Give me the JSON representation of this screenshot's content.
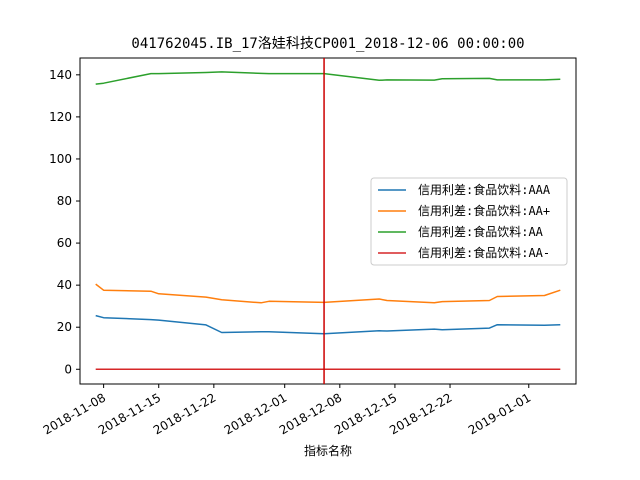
{
  "chart_data": {
    "type": "line",
    "title": "041762045.IB_17洛娃科技CP001_2018-12-06 00:00:00",
    "xlabel": "指标名称",
    "ylabel": "",
    "x_dates": [
      "2018-11-07",
      "2018-11-08",
      "2018-11-14",
      "2018-11-15",
      "2018-11-21",
      "2018-11-23",
      "2018-11-28",
      "2018-11-29",
      "2018-12-06",
      "2018-12-13",
      "2018-12-14",
      "2018-12-20",
      "2018-12-21",
      "2018-12-27",
      "2018-12-28",
      "2019-01-03",
      "2019-01-05"
    ],
    "series": [
      {
        "name": "信用利差:食品饮料:AAA",
        "color": "#1f77b4",
        "values": [
          25.5,
          24.5,
          23.6,
          23.4,
          21.1,
          17.5,
          17.8,
          17.8,
          16.9,
          18.3,
          18.2,
          19.1,
          18.8,
          19.6,
          21.2,
          20.9,
          21.2
        ]
      },
      {
        "name": "信用利差:食品饮料:AA+",
        "color": "#ff7f0e",
        "values": [
          40.5,
          37.6,
          37.1,
          35.9,
          34.3,
          33.1,
          31.6,
          32.3,
          31.8,
          33.4,
          32.7,
          31.6,
          32.2,
          32.7,
          34.6,
          35.1,
          37.6
        ]
      },
      {
        "name": "信用利差:食品饮料:AA",
        "color": "#2ca02c",
        "values": [
          135.6,
          136.0,
          140.6,
          140.6,
          141.1,
          141.4,
          140.7,
          140.6,
          140.6,
          137.4,
          137.6,
          137.5,
          138.1,
          138.3,
          137.6,
          137.6,
          137.9
        ]
      },
      {
        "name": "信用利差:食品饮料:AA-",
        "color": "#d62728",
        "values": [
          0,
          0,
          0,
          0,
          0,
          0,
          0,
          0,
          0,
          0,
          0,
          0,
          0,
          0,
          0,
          0,
          0
        ]
      }
    ],
    "ylim": [
      -7,
      148
    ],
    "yticks": [
      0,
      20,
      40,
      60,
      80,
      100,
      120,
      140
    ],
    "xlim": [
      "2018-11-05",
      "2019-01-07"
    ],
    "xticks": [
      "2018-11-08",
      "2018-11-15",
      "2018-11-22",
      "2018-12-01",
      "2018-12-08",
      "2018-12-15",
      "2018-12-22",
      "2019-01-01"
    ],
    "vline": {
      "x": "2018-12-06",
      "color": "#cc0000"
    },
    "legend": "center-right",
    "grid": false
  }
}
